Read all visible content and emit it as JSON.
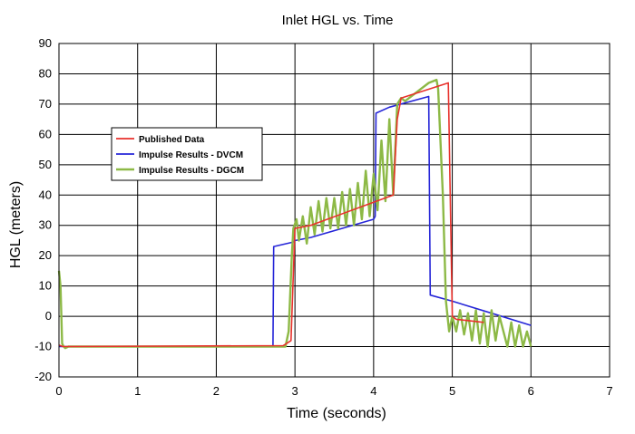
{
  "chart_data": {
    "type": "line",
    "title": "Inlet HGL vs. Time",
    "xlabel": "Time (seconds)",
    "ylabel": "HGL (meters)",
    "xlim": [
      0,
      7
    ],
    "ylim": [
      -20,
      90
    ],
    "xticks": [
      0,
      1,
      2,
      3,
      4,
      5,
      6,
      7
    ],
    "yticks": [
      -20,
      -10,
      0,
      10,
      20,
      30,
      40,
      50,
      60,
      70,
      80,
      90
    ],
    "grid": true,
    "legend": "upper-left",
    "series": [
      {
        "name": "Published Data",
        "color": "#e8312c",
        "points": [
          [
            0,
            -9.5
          ],
          [
            0.05,
            -10
          ],
          [
            2.85,
            -9.7
          ],
          [
            2.95,
            -8
          ],
          [
            3.0,
            29
          ],
          [
            3.2,
            30
          ],
          [
            4.25,
            40
          ],
          [
            4.3,
            65
          ],
          [
            4.35,
            72
          ],
          [
            4.95,
            77
          ],
          [
            5.0,
            0
          ],
          [
            5.05,
            -1
          ],
          [
            5.4,
            -2
          ]
        ]
      },
      {
        "name": "Impulse Results - DVCM",
        "color": "#2626d8",
        "points": [
          [
            0,
            -10
          ],
          [
            2.72,
            -10
          ],
          [
            2.73,
            23
          ],
          [
            2.98,
            24.5
          ],
          [
            3.0,
            25
          ],
          [
            3.2,
            26
          ],
          [
            4.0,
            32
          ],
          [
            4.02,
            33
          ],
          [
            4.03,
            67
          ],
          [
            4.2,
            69
          ],
          [
            4.7,
            72.5
          ],
          [
            4.72,
            7
          ],
          [
            5.0,
            5
          ],
          [
            5.5,
            1
          ],
          [
            6.0,
            -3
          ]
        ]
      },
      {
        "name": "Impulse Results - DGCM",
        "color": "#8db946",
        "points": [
          [
            0,
            15
          ],
          [
            0.02,
            10
          ],
          [
            0.04,
            -9
          ],
          [
            0.06,
            -10
          ],
          [
            0.08,
            -10.5
          ],
          [
            0.12,
            -10
          ],
          [
            2.8,
            -10
          ],
          [
            2.88,
            -10
          ],
          [
            2.92,
            -5
          ],
          [
            2.96,
            20
          ],
          [
            2.98,
            29
          ],
          [
            3.02,
            32
          ],
          [
            3.05,
            25
          ],
          [
            3.1,
            33
          ],
          [
            3.15,
            24
          ],
          [
            3.2,
            36
          ],
          [
            3.25,
            27
          ],
          [
            3.3,
            38
          ],
          [
            3.35,
            28
          ],
          [
            3.4,
            39
          ],
          [
            3.45,
            29
          ],
          [
            3.5,
            39
          ],
          [
            3.55,
            29
          ],
          [
            3.6,
            41
          ],
          [
            3.65,
            30
          ],
          [
            3.7,
            42
          ],
          [
            3.75,
            30
          ],
          [
            3.8,
            44
          ],
          [
            3.85,
            32
          ],
          [
            3.9,
            48
          ],
          [
            3.95,
            33
          ],
          [
            4.0,
            47
          ],
          [
            4.05,
            35
          ],
          [
            4.1,
            58
          ],
          [
            4.15,
            38
          ],
          [
            4.2,
            65
          ],
          [
            4.25,
            40
          ],
          [
            4.3,
            70
          ],
          [
            4.35,
            72
          ],
          [
            4.4,
            71
          ],
          [
            4.5,
            73
          ],
          [
            4.6,
            75
          ],
          [
            4.7,
            77
          ],
          [
            4.8,
            78
          ],
          [
            4.82,
            75
          ],
          [
            4.88,
            40
          ],
          [
            4.92,
            5
          ],
          [
            4.96,
            -5
          ],
          [
            5.0,
            0
          ],
          [
            5.05,
            -5
          ],
          [
            5.1,
            2
          ],
          [
            5.15,
            -6
          ],
          [
            5.2,
            1
          ],
          [
            5.25,
            -8
          ],
          [
            5.3,
            2
          ],
          [
            5.35,
            -9
          ],
          [
            5.4,
            1
          ],
          [
            5.45,
            -10
          ],
          [
            5.5,
            2
          ],
          [
            5.55,
            -8
          ],
          [
            5.6,
            0
          ],
          [
            5.7,
            -10
          ],
          [
            5.75,
            -2
          ],
          [
            5.8,
            -10
          ],
          [
            5.85,
            -3
          ],
          [
            5.9,
            -10
          ],
          [
            5.95,
            -5
          ],
          [
            6.0,
            -10
          ]
        ]
      }
    ]
  }
}
